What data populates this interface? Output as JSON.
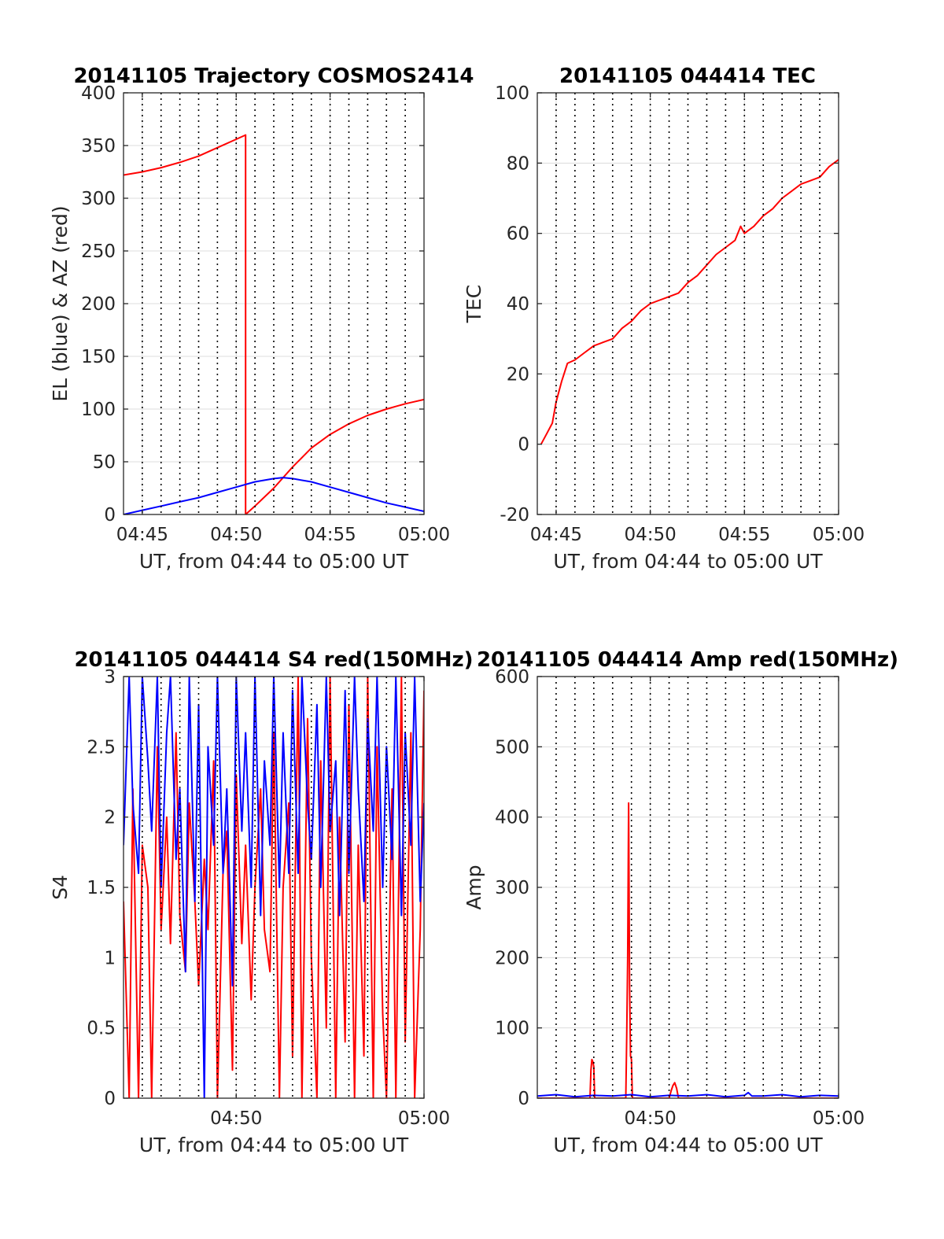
{
  "chart_data": [
    {
      "type": "line",
      "title": "20141105 Trajectory COSMOS2414",
      "xlabel": "UT, from 04:44 to 05:00 UT",
      "ylabel": "EL (blue) & AZ (red)",
      "xlim": [
        44.0,
        60.0
      ],
      "ylim": [
        0,
        400
      ],
      "yticks": [
        0,
        50,
        100,
        150,
        200,
        250,
        300,
        350,
        400
      ],
      "ytick_labels": [
        "0",
        "50",
        "100",
        "150",
        "200",
        "250",
        "300",
        "350",
        "400"
      ],
      "xticks": [
        45,
        50,
        55,
        60
      ],
      "xtick_labels": [
        "04:45",
        "04:50",
        "04:55",
        "05:00"
      ],
      "minor_dotted_step": 1,
      "grid": true,
      "series": [
        {
          "color": "#ff0000",
          "x": [
            44.0,
            45.0,
            46.0,
            47.0,
            48.0,
            49.0,
            50.0,
            50.5,
            50.5,
            51.0,
            52.0,
            53.0,
            54.0,
            55.0,
            56.0,
            57.0,
            58.0,
            59.0,
            60.0
          ],
          "y": [
            322,
            325,
            329,
            334,
            340,
            348,
            356,
            360,
            0,
            8,
            25,
            45,
            63,
            76,
            86,
            94,
            100,
            105,
            109
          ]
        },
        {
          "color": "#0000ff",
          "x": [
            44.0,
            45.0,
            46.0,
            47.0,
            48.0,
            49.0,
            50.0,
            51.0,
            52.0,
            52.5,
            53.0,
            54.0,
            55.0,
            56.0,
            57.0,
            58.0,
            59.0,
            60.0
          ],
          "y": [
            0,
            4,
            8,
            12,
            16,
            21,
            26,
            31,
            34,
            35,
            34,
            31,
            26,
            21,
            16,
            11,
            7,
            3
          ]
        }
      ]
    },
    {
      "type": "line",
      "title": "20141105 044414 TEC",
      "xlabel": "UT, from 04:44 to 05:00 UT",
      "ylabel": "TEC",
      "xlim": [
        44.0,
        60.0
      ],
      "ylim": [
        -20,
        100
      ],
      "yticks": [
        -20,
        0,
        20,
        40,
        60,
        80,
        100
      ],
      "ytick_labels": [
        "-20",
        "0",
        "20",
        "40",
        "60",
        "80",
        "100"
      ],
      "xticks": [
        45,
        50,
        55,
        60
      ],
      "xtick_labels": [
        "04:45",
        "04:50",
        "04:55",
        "05:00"
      ],
      "minor_dotted_step": 1,
      "grid": true,
      "series": [
        {
          "color": "#ff0000",
          "x": [
            44.2,
            44.5,
            44.8,
            45.0,
            45.3,
            45.6,
            46.0,
            46.5,
            47.0,
            47.5,
            48.0,
            48.5,
            49.0,
            49.5,
            50.0,
            50.5,
            51.0,
            51.5,
            52.0,
            52.5,
            53.0,
            53.5,
            54.0,
            54.5,
            54.8,
            55.0,
            55.5,
            56.0,
            56.5,
            57.0,
            57.5,
            58.0,
            58.5,
            59.0,
            59.5,
            60.0
          ],
          "y": [
            0,
            3,
            6,
            12,
            18,
            23,
            24,
            26,
            28,
            29,
            30,
            33,
            35,
            38,
            40,
            41,
            42,
            43,
            46,
            48,
            51,
            54,
            56,
            58,
            62,
            60,
            62,
            65,
            67,
            70,
            72,
            74,
            75,
            76,
            79,
            81
          ]
        }
      ]
    },
    {
      "type": "line",
      "title": "20141105 044414 S4 red(150MHz)",
      "xlabel": "UT, from 04:44 to 05:00 UT",
      "ylabel": "S4",
      "xlim": [
        44.0,
        60.0
      ],
      "ylim": [
        0,
        3
      ],
      "yticks": [
        0,
        0.5,
        1,
        1.5,
        2,
        2.5,
        3
      ],
      "ytick_labels": [
        "0",
        "0.5",
        "1",
        "1.5",
        "2",
        "2.5",
        "3"
      ],
      "xticks": [
        50,
        60
      ],
      "xtick_labels": [
        "04:50",
        "05:00"
      ],
      "minor_dotted_step": 1,
      "grid": true,
      "series": [
        {
          "color": "#ff0000",
          "x": [
            44.0,
            44.3,
            44.5,
            44.8,
            45.0,
            45.3,
            45.5,
            45.8,
            46.0,
            46.3,
            46.5,
            46.8,
            47.0,
            47.3,
            47.5,
            47.8,
            48.0,
            48.3,
            48.5,
            48.8,
            49.0,
            49.3,
            49.5,
            49.8,
            50.0,
            50.3,
            50.5,
            50.8,
            51.0,
            51.3,
            51.5,
            51.8,
            52.0,
            52.3,
            52.5,
            52.8,
            53.0,
            53.3,
            53.5,
            53.8,
            54.0,
            54.3,
            54.5,
            54.8,
            55.0,
            55.3,
            55.5,
            55.8,
            56.0,
            56.3,
            56.5,
            56.8,
            57.0,
            57.3,
            57.5,
            57.8,
            58.0,
            58.3,
            58.5,
            58.8,
            59.0,
            59.3,
            59.5,
            59.8,
            60.0
          ],
          "y": [
            1.4,
            0,
            2.2,
            0,
            1.8,
            1.5,
            0,
            2.5,
            1.2,
            2.0,
            1.1,
            2.6,
            1.3,
            0.9,
            2.1,
            1.4,
            0.8,
            1.7,
            1.2,
            2.4,
            0,
            1.6,
            1.9,
            0.2,
            2.3,
            1.1,
            1.8,
            0.7,
            1.5,
            2.2,
            1.2,
            0.9,
            2.6,
            0,
            1.5,
            2.1,
            0.3,
            3.0,
            0,
            2.7,
            1.0,
            0,
            2.4,
            0.5,
            3.0,
            0,
            2.0,
            0.4,
            2.8,
            0,
            1.8,
            0.3,
            3.0,
            0,
            2.5,
            0.6,
            0,
            2.2,
            0,
            3.0,
            0.4,
            2.6,
            0,
            1.2,
            2.9
          ]
        },
        {
          "color": "#0000ff",
          "x": [
            44.0,
            44.3,
            44.5,
            44.8,
            45.0,
            45.3,
            45.5,
            45.8,
            46.0,
            46.3,
            46.5,
            46.8,
            47.0,
            47.3,
            47.5,
            47.8,
            48.0,
            48.3,
            48.5,
            48.8,
            49.0,
            49.3,
            49.5,
            49.8,
            50.0,
            50.3,
            50.5,
            50.8,
            51.0,
            51.3,
            51.5,
            51.8,
            52.0,
            52.3,
            52.5,
            52.8,
            53.0,
            53.3,
            53.5,
            53.8,
            54.0,
            54.3,
            54.5,
            54.8,
            55.0,
            55.3,
            55.5,
            55.8,
            56.0,
            56.3,
            56.5,
            56.8,
            57.0,
            57.3,
            57.5,
            57.8,
            58.0,
            58.3,
            58.5,
            58.8,
            59.0,
            59.3,
            59.5,
            59.8,
            60.0
          ],
          "y": [
            1.8,
            3.0,
            2.1,
            1.6,
            3.0,
            2.4,
            1.9,
            3.0,
            1.5,
            2.6,
            3.0,
            1.7,
            2.2,
            0.9,
            3.0,
            1.4,
            2.8,
            0,
            2.5,
            1.8,
            3.0,
            1.6,
            2.2,
            0.8,
            3.0,
            1.9,
            2.6,
            1.5,
            3.0,
            1.3,
            2.4,
            1.8,
            3.0,
            1.5,
            2.6,
            1.6,
            2.9,
            1.6,
            3.0,
            2.1,
            1.7,
            2.8,
            1.5,
            3.0,
            1.9,
            2.4,
            1.3,
            2.9,
            1.6,
            3.0,
            2.2,
            1.4,
            2.7,
            1.9,
            3.0,
            1.5,
            2.5,
            1.7,
            3.0,
            1.3,
            2.6,
            1.8,
            3.0,
            1.4,
            2.1
          ]
        }
      ]
    },
    {
      "type": "line",
      "title": "20141105 044414 Amp red(150MHz)",
      "xlabel": "UT, from 04:44 to 05:00 UT",
      "ylabel": "Amp",
      "xlim": [
        44.0,
        60.0
      ],
      "ylim": [
        0,
        600
      ],
      "yticks": [
        0,
        100,
        200,
        300,
        400,
        500,
        600
      ],
      "ytick_labels": [
        "0",
        "100",
        "200",
        "300",
        "400",
        "500",
        "600"
      ],
      "xticks": [
        50,
        60
      ],
      "xtick_labels": [
        "04:50",
        "05:00"
      ],
      "minor_dotted_step": 1,
      "grid": true,
      "series": [
        {
          "color": "#ff0000",
          "x": [
            44.0,
            46.8,
            46.85,
            46.9,
            46.95,
            47.0,
            47.05,
            48.7,
            48.75,
            48.8,
            48.85,
            48.9,
            48.95,
            49.0,
            49.05,
            49.1,
            49.15,
            51.0,
            51.1,
            51.2,
            51.3,
            51.4,
            51.5,
            60.0
          ],
          "y": [
            0,
            0,
            40,
            55,
            52,
            45,
            0,
            0,
            90,
            200,
            420,
            160,
            60,
            55,
            0,
            0,
            0,
            0,
            10,
            18,
            22,
            14,
            0,
            0
          ]
        },
        {
          "color": "#0000ff",
          "x": [
            44.0,
            45.0,
            46.0,
            47.0,
            48.0,
            49.0,
            50.0,
            51.0,
            52.0,
            53.0,
            54.0,
            55.0,
            55.2,
            55.4,
            56.0,
            57.0,
            58.0,
            59.0,
            60.0
          ],
          "y": [
            3,
            5,
            2,
            4,
            3,
            5,
            2,
            4,
            3,
            5,
            2,
            4,
            8,
            3,
            3,
            5,
            2,
            4,
            3
          ]
        }
      ]
    }
  ]
}
